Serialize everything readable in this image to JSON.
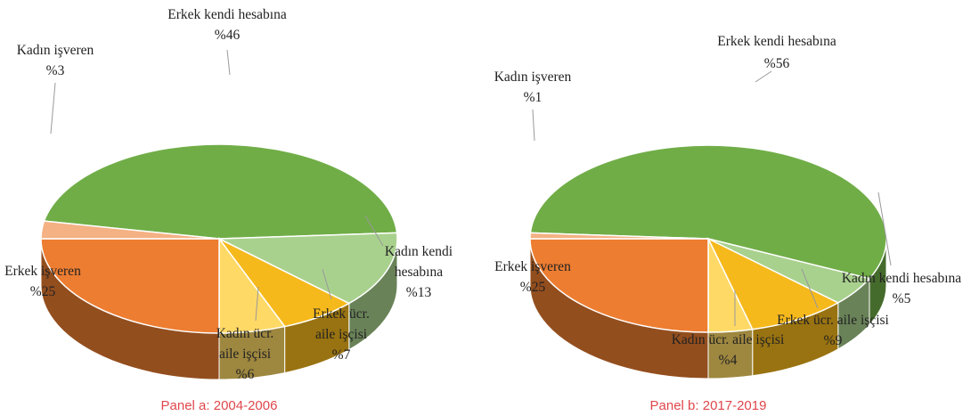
{
  "chart_data": [
    {
      "type": "pie",
      "title": "Panel a: 2004-2006",
      "categories": [
        "Erkek kendi hesabına",
        "Kadın kendi hesabına",
        "Erkek ücr. aile işçisi",
        "Kadın ücr. aile işçisi",
        "Erkek işveren",
        "Kadın işveren"
      ],
      "values": [
        46,
        13,
        7,
        6,
        25,
        3
      ],
      "value_labels": [
        "%46",
        "%13",
        "%7",
        "%6",
        "%25",
        "%3"
      ],
      "colors": [
        "#70ad47",
        "#a9d18e",
        "#f6b91c",
        "#ffd966",
        "#ed7d31",
        "#f4b183"
      ]
    },
    {
      "type": "pie",
      "title": "Panel b: 2017-2019",
      "categories": [
        "Erkek kendi hesabına",
        "Kadın kendi hesabına",
        "Erkek ücr. aile işçisi",
        "Kadın ücr. aile işçisi",
        "Erkek işveren",
        "Kadın işveren"
      ],
      "values": [
        56,
        5,
        9,
        4,
        25,
        1
      ],
      "value_labels": [
        "%56",
        "%5",
        "%9",
        "%4",
        "%25",
        "%1"
      ],
      "colors": [
        "#70ad47",
        "#a9d18e",
        "#f6b91c",
        "#ffd966",
        "#ed7d31",
        "#f4b183"
      ]
    }
  ]
}
